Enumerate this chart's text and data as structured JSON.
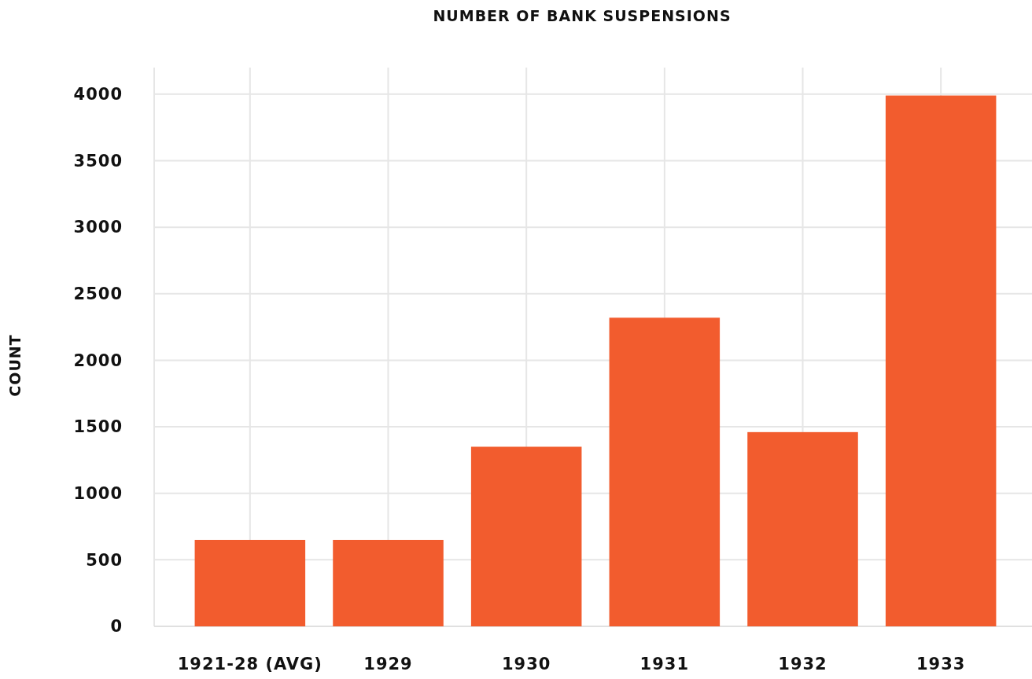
{
  "chart_data": {
    "type": "bar",
    "title": "NUMBER OF BANK SUSPENSIONS",
    "ylabel": "COUNT",
    "categories": [
      "1921-28 (AVG)",
      "1929",
      "1930",
      "1931",
      "1932",
      "1933"
    ],
    "values": [
      650,
      650,
      1350,
      2320,
      1460,
      3990
    ],
    "color": "#f25c2e",
    "ylim": [
      0,
      4200
    ],
    "yticks": [
      0,
      500,
      1000,
      1500,
      2000,
      2500,
      3000,
      3500,
      4000
    ],
    "grid": true
  }
}
